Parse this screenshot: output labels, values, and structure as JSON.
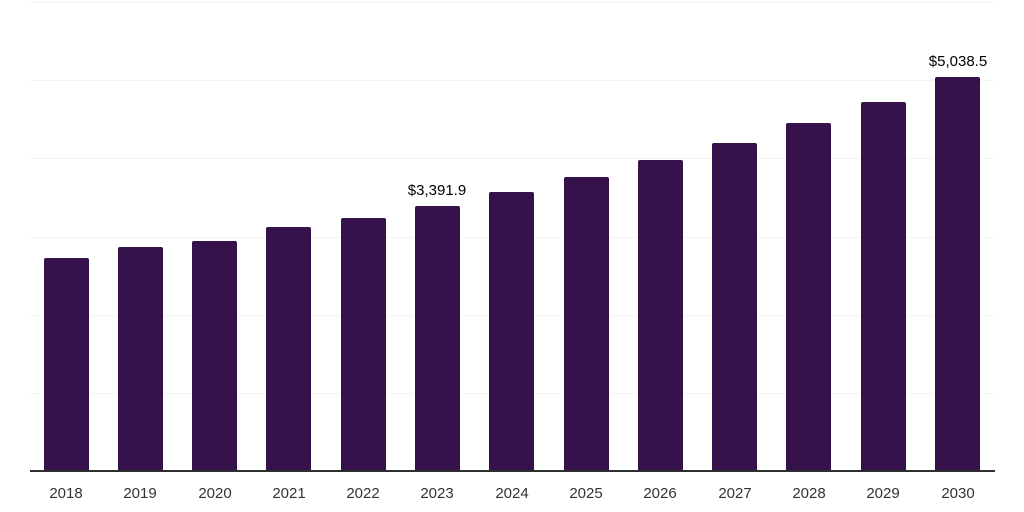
{
  "chart_data": {
    "type": "bar",
    "title": "",
    "xlabel": "",
    "ylabel": "",
    "categories": [
      "2018",
      "2019",
      "2020",
      "2021",
      "2022",
      "2023",
      "2024",
      "2025",
      "2026",
      "2027",
      "2028",
      "2029",
      "2030"
    ],
    "values": [
      2725,
      2860,
      2940,
      3120,
      3235,
      3391.9,
      3575,
      3760,
      3985,
      4200,
      4455,
      4720,
      5038.5
    ],
    "point_labels": {
      "2023": "$3,391.9",
      "2030": "$5,038.5"
    },
    "ylim": [
      0,
      6000
    ],
    "gridline_step": 1000,
    "grid": true,
    "legend": "none",
    "colors": {
      "bar": "#351249",
      "grid": "#f4f4f4",
      "axis": "#2e2e2e",
      "tick_text": "#333333",
      "label_text": "#000000",
      "background": "#ffffff"
    }
  }
}
